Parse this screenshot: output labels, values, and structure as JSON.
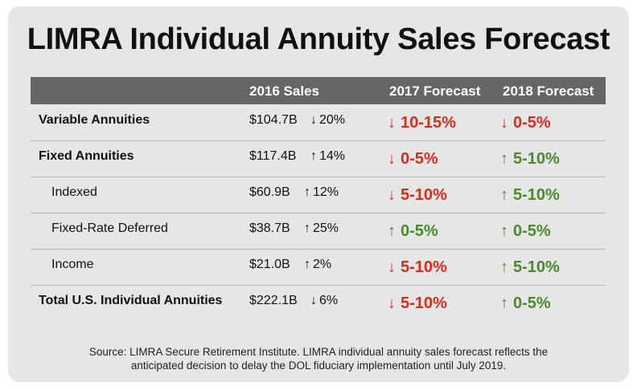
{
  "title": "LIMRA Individual Annuity Sales Forecast",
  "header": {
    "col_sales": "2016 Sales",
    "col_2017": "2017 Forecast",
    "col_2018": "2018 Forecast"
  },
  "rows": [
    {
      "label": "Variable Annuities",
      "sales": "$104.7B",
      "change_dir": "down",
      "change": "20%",
      "f2017_dir": "down",
      "f2017": "10-15%",
      "f2018_dir": "down",
      "f2018": "0-5%"
    },
    {
      "label": "Fixed Annuities",
      "sales": "$117.4B",
      "change_dir": "up",
      "change": "14%",
      "f2017_dir": "down",
      "f2017": "0-5%",
      "f2018_dir": "up",
      "f2018": "5-10%"
    },
    {
      "label": "Indexed",
      "sales": "$60.9B",
      "change_dir": "up",
      "change": "12%",
      "f2017_dir": "down",
      "f2017": "5-10%",
      "f2018_dir": "up",
      "f2018": "5-10%"
    },
    {
      "label": "Fixed-Rate Deferred",
      "sales": "$38.7B",
      "change_dir": "up",
      "change": "25%",
      "f2017_dir": "up",
      "f2017": "0-5%",
      "f2018_dir": "up",
      "f2018": "0-5%"
    },
    {
      "label": "Income",
      "sales": "$21.0B",
      "change_dir": "up",
      "change": "2%",
      "f2017_dir": "down",
      "f2017": "5-10%",
      "f2018_dir": "up",
      "f2018": "5-10%"
    },
    {
      "label": "Total U.S. Individual Annuities",
      "sales": "$222.1B",
      "change_dir": "down",
      "change": "6%",
      "f2017_dir": "down",
      "f2017": "5-10%",
      "f2018_dir": "up",
      "f2018": "0-5%"
    }
  ],
  "source": {
    "line1": "Source: LIMRA Secure Retirement Institute. LIMRA individual annuity sales forecast reflects the",
    "line2": "anticipated decision to delay the DOL fiduciary implementation until July 2019."
  },
  "colors": {
    "down": "#d42e1e",
    "up": "#4a8a2b",
    "header_bg": "#666667"
  }
}
